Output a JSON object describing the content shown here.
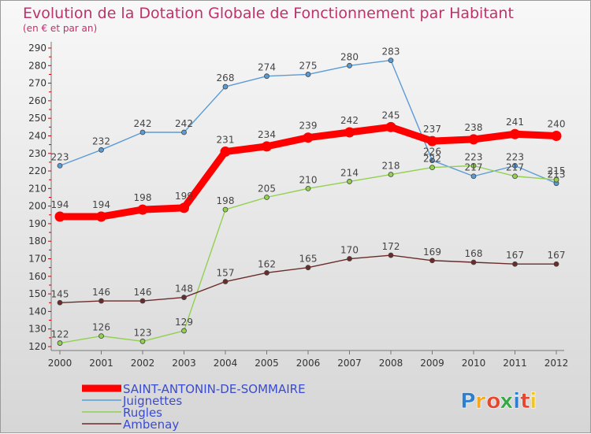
{
  "chart_data": {
    "type": "line",
    "title": "Evolution de la Dotation Globale de Fonctionnement par Habitant",
    "subtitle": "(en € et par an)",
    "categories": [
      "2000",
      "2001",
      "2002",
      "2003",
      "2004",
      "2005",
      "2006",
      "2007",
      "2008",
      "2009",
      "2010",
      "2011",
      "2012"
    ],
    "ylim": [
      120,
      290
    ],
    "yticks": [
      120,
      130,
      140,
      150,
      160,
      170,
      180,
      190,
      200,
      210,
      220,
      230,
      240,
      250,
      260,
      270,
      280,
      290
    ],
    "grid": false,
    "legend_position": "bottom-left",
    "series": [
      {
        "name": "SAINT-ANTONIN-DE-SOMMAIRE",
        "color": "#ff0000",
        "values": [
          194,
          194,
          198,
          199,
          231,
          234,
          239,
          242,
          245,
          237,
          238,
          241,
          240
        ]
      },
      {
        "name": "Juignettes",
        "color": "#5b9bd5",
        "values": [
          223,
          232,
          242,
          242,
          268,
          274,
          275,
          280,
          283,
          226,
          217,
          223,
          213
        ]
      },
      {
        "name": "Rugles",
        "color": "#92d050",
        "values": [
          122,
          126,
          123,
          129,
          198,
          205,
          210,
          214,
          218,
          222,
          223,
          217,
          215
        ]
      },
      {
        "name": "Ambenay",
        "color": "#6b2b2b",
        "values": [
          145,
          146,
          146,
          148,
          157,
          162,
          165,
          170,
          172,
          169,
          168,
          167,
          167
        ]
      }
    ]
  },
  "logo": {
    "text": "Proxiti",
    "letters": [
      "P",
      "r",
      "o",
      "x",
      "i",
      "t",
      "i"
    ],
    "colors": [
      "#2e7fd1",
      "#f5a623",
      "#e8472f",
      "#37a845",
      "#2e7fd1",
      "#e8472f",
      "#f5c518"
    ]
  }
}
